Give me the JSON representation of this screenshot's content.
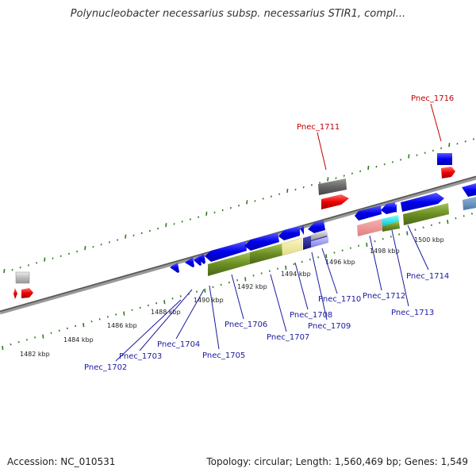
{
  "title": "Polynucleobacter necessarius subsp. necessarius STIR1, compl...",
  "footer": {
    "accession": "Accession: NC_010531",
    "topology": "Topology: circular; Length: 1,560,469 bp; Genes: 1,549"
  },
  "scale_labels": [
    "1482 kbp",
    "1484 kbp",
    "1486 kbp",
    "1488 kbp",
    "1490 kbp",
    "1492 kbp",
    "1494 kbp",
    "1496 kbp",
    "1498 kbp",
    "1500 kbp"
  ],
  "genes_below": [
    "Pnec_1702",
    "Pnec_1703",
    "Pnec_1704",
    "Pnec_1705",
    "Pnec_1706",
    "Pnec_1707",
    "Pnec_1708",
    "Pnec_1709",
    "Pnec_1710",
    "Pnec_1712",
    "Pnec_1713",
    "Pnec_1714"
  ],
  "genes_above": [
    "Pnec_1711",
    "Pnec_1716"
  ],
  "colors": {
    "label_blue": "#1a1aa0",
    "label_red": "#c00000",
    "gene_blue": "#0000ee",
    "gene_red": "#ee0000",
    "olive": "#6b8e23",
    "grey": "#666666",
    "tick_green": "#2e7d1e"
  }
}
